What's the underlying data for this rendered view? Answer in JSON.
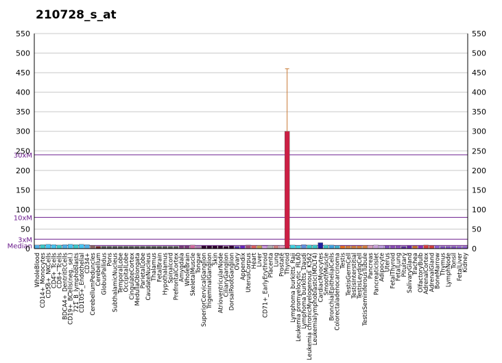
{
  "chart_data": {
    "type": "bar",
    "title": "210728_s_at",
    "xlabel": "",
    "ylabel": "",
    "ylim": [
      0,
      550
    ],
    "yticks": [
      0,
      50,
      100,
      150,
      200,
      250,
      300,
      350,
      400,
      450,
      500,
      550
    ],
    "grid": true,
    "reference_lines": [
      {
        "label": "Median",
        "value": 8
      },
      {
        "label": "3xM",
        "value": 24
      },
      {
        "label": "10xM",
        "value": 80
      },
      {
        "label": "30xM",
        "value": 240
      }
    ],
    "error_bars": [
      {
        "category": "Thyroid",
        "low": 300,
        "high": 460
      }
    ],
    "categories": [
      "WholeBlood",
      "CD14+_Monocytes",
      "CD56+_NKCells",
      "CD4+_Tcells",
      "CD8+_Tcells",
      "BDCA4+_DentriticCells",
      "CD19+_BCells(neg._sel.)",
      "721_B_lymphoblasts",
      "CD105+_Endothelial",
      "CD34+",
      "CerebellumPeduncles",
      "Cerebellum",
      "GlobusPallidus",
      "Pons",
      "SubthalamicNucleus",
      "TemporalLobe",
      "OccipitalLobe",
      "CingulateCortex",
      "MedullaOblongata",
      "ParietalLobe",
      "CaudateNucleus",
      "Thalamus",
      "FetalBrain",
      "Hypothalamus",
      "Spinalcord",
      "PrefrontalCortex",
      "Amygdala",
      "WholeBrain",
      "SkeletalMuscle",
      "Tongue",
      "SuperiorCervicalGanglion",
      "TrigeminalGanglion",
      "Skin",
      "AtrioventricularNode",
      "CiliaryGanglion",
      "DorsalRootGanglion",
      "Ovary",
      "Appendix",
      "UterusCorpus",
      "Heart",
      "Liver",
      "CD71+_EarlyErythroid",
      "Placenta",
      "Lung",
      "Prostate",
      "Thyroid",
      "Lymphoma burkitts_Raji",
      "Leukemia promyelocytic_HL60",
      "Lymphoma burkitts_Daudi",
      "Leukemia chronicMyelogenous_K562",
      "Leukemialymphoblastic(MOLT4)",
      "CardiacMyocytes",
      "SmoothMuscle",
      "BronchialEpithelialCells",
      "Colorectaladenocarcinoma",
      "Testis",
      "TestisGermCell",
      "TestisInterstitial",
      "TestisLeydigCell",
      "TestisSeminiferousTubule",
      "Pancreas",
      "PancreaticIslet",
      "Adipocyte",
      "Uterus",
      "FetalThyroid",
      "FetalLung",
      "Pituitary",
      "SalivaryGland",
      "Trachea",
      "OlfactoryBulb",
      "AdrenalCortex",
      "AdrenalGland",
      "BoneMarrow",
      "Thymus",
      "LymphNode",
      "Tonsil",
      "FetalLiver",
      "Kidney"
    ],
    "values": [
      9,
      10,
      11,
      10,
      9,
      10,
      11,
      10,
      11,
      10,
      8,
      6,
      6,
      6,
      6,
      6,
      6,
      6,
      6,
      6,
      6,
      6,
      6,
      6,
      6,
      6,
      7,
      7,
      9,
      6,
      7,
      7,
      7,
      7,
      6,
      7,
      6,
      7,
      9,
      8,
      8,
      7,
      8,
      8,
      8,
      300,
      9,
      8,
      10,
      9,
      9,
      15,
      9,
      9,
      8,
      7,
      7,
      7,
      7,
      8,
      8,
      9,
      8,
      7,
      7,
      7,
      6,
      7,
      7,
      7,
      9,
      8,
      8,
      6,
      6,
      6,
      6,
      6
    ],
    "colors": [
      "#4fb0e8",
      "#3cc8c8",
      "#46c3f0",
      "#46c3f0",
      "#3cc8c8",
      "#4fb0e8",
      "#46c3f0",
      "#3cc8c8",
      "#46c3f0",
      "#4fb0e8",
      "#8c6464",
      "#6e2828",
      "#505050",
      "#505050",
      "#505050",
      "#505050",
      "#505050",
      "#505050",
      "#505050",
      "#505050",
      "#505050",
      "#505050",
      "#505050",
      "#505050",
      "#505050",
      "#505050",
      "#7a3c7a",
      "#7a3c7a",
      "#d06aa0",
      "#b07ab4",
      "#300030",
      "#300030",
      "#300030",
      "#300030",
      "#300030",
      "#300030",
      "#5030a0",
      "#6a28c8",
      "#a05078",
      "#e06060",
      "#c0a050",
      "#d8a0e8",
      "#b0b0b0",
      "#d08080",
      "#e0a0c0",
      "#cc1f44",
      "#40d0e0",
      "#40d0e0",
      "#6090e0",
      "#3cc8c8",
      "#3cc8c8",
      "#2020a0",
      "#40c0c0",
      "#40a0e0",
      "#40b0d0",
      "#f07020",
      "#d88040",
      "#d88040",
      "#d88040",
      "#d88040",
      "#d8a0c0",
      "#c8a0d8",
      "#c0a0e0",
      "#8050c0",
      "#9050c0",
      "#9050c0",
      "#6030a0",
      "#6a28a8",
      "#d07030",
      "#9030c0",
      "#d04040",
      "#d04040",
      "#9060d0",
      "#8050c0",
      "#8050c0",
      "#8050c0",
      "#9060d0",
      "#9060d0"
    ]
  }
}
